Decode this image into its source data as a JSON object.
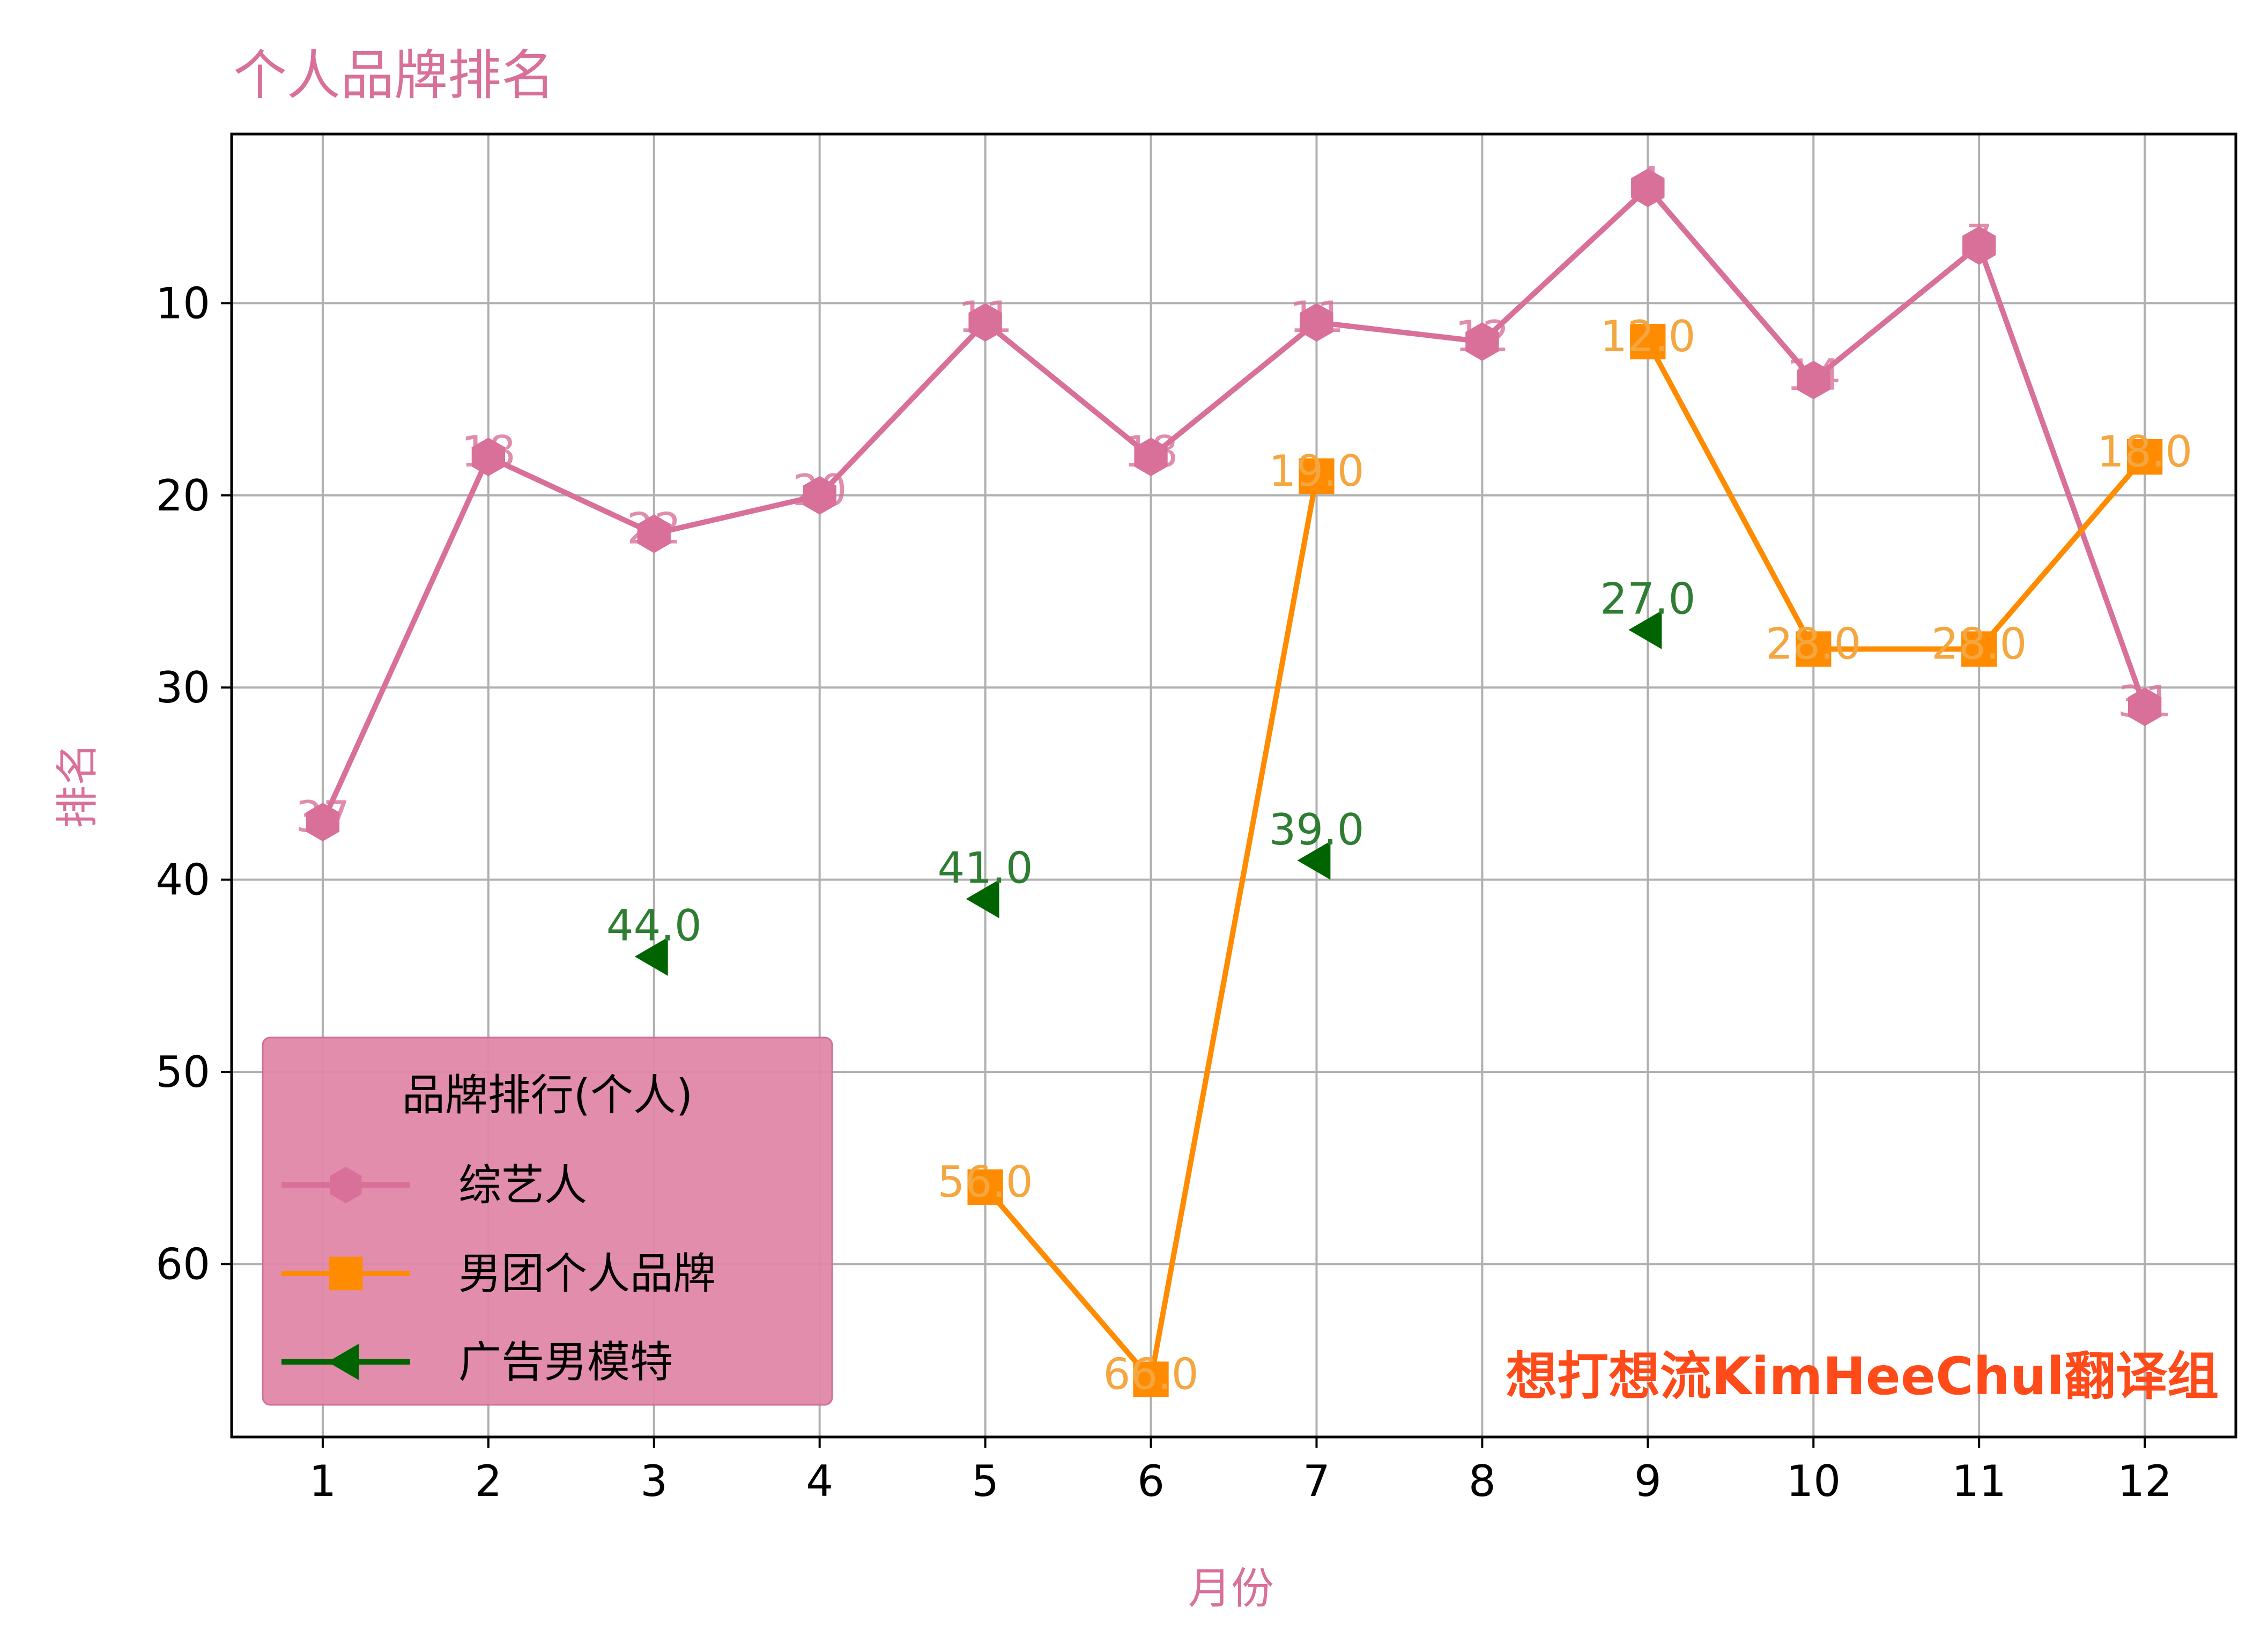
{
  "chart_data": {
    "type": "line",
    "title": "个人品牌排名",
    "xlabel": "月份",
    "ylabel": "排名",
    "x": [
      1,
      2,
      3,
      4,
      5,
      6,
      7,
      8,
      9,
      10,
      11,
      12
    ],
    "xticks": [
      "1",
      "2",
      "3",
      "4",
      "5",
      "6",
      "7",
      "8",
      "9",
      "10",
      "11",
      "12"
    ],
    "xlim": [
      0.45,
      12.55
    ],
    "ylim": [
      69,
      1.2
    ],
    "y_inverted": true,
    "yticks": [
      "10",
      "20",
      "30",
      "40",
      "50",
      "60"
    ],
    "grid": true,
    "legend": {
      "title": "品牌排行(个人)",
      "placement": "lower-left"
    },
    "series": [
      {
        "name": "综艺人",
        "color": "#d87099",
        "marker": "hexagon",
        "line": true,
        "points": [
          [
            1,
            37
          ],
          [
            2,
            18
          ],
          [
            3,
            22
          ],
          [
            4,
            20
          ],
          [
            5,
            11
          ],
          [
            6,
            18
          ],
          [
            7,
            11
          ],
          [
            8,
            12
          ],
          [
            9,
            4
          ],
          [
            10,
            14
          ],
          [
            11,
            7
          ],
          [
            12,
            31
          ]
        ],
        "labels": [
          "37",
          "18",
          "22",
          "20",
          "11",
          "18",
          "11",
          "12",
          "4",
          "14",
          "7",
          "31"
        ]
      },
      {
        "name": "男团个人品牌",
        "color": "#ff8c00",
        "label_color": "#f4a640",
        "marker": "square",
        "line": true,
        "points": [
          [
            5,
            56
          ],
          [
            6,
            66
          ],
          [
            7,
            19
          ],
          [
            9,
            12
          ],
          [
            10,
            28
          ],
          [
            11,
            28
          ],
          [
            12,
            18
          ]
        ],
        "segments": [
          [
            0,
            1,
            2
          ],
          [
            3,
            4,
            5,
            6
          ]
        ],
        "labels": [
          "56.0",
          "66.0",
          "19.0",
          "12.0",
          "28.0",
          "28.0",
          "18.0"
        ]
      },
      {
        "name": "广告男模特",
        "color": "#006400",
        "label_color": "#2e7d32",
        "marker": "triangle-left",
        "line": false,
        "points": [
          [
            3,
            44
          ],
          [
            5,
            41
          ],
          [
            7,
            39
          ],
          [
            9,
            27
          ]
        ],
        "labels": [
          "44.0",
          "41.0",
          "39.0",
          "27.0"
        ]
      }
    ],
    "annotations": [
      {
        "text": "想打想流KimHeeChul翻译组",
        "color": "#ff4a1a",
        "placement": "bottom-right"
      }
    ],
    "colors": {
      "title": "#d87099",
      "axis_title": "#d87099",
      "legend_bg": "#e087a6"
    }
  }
}
